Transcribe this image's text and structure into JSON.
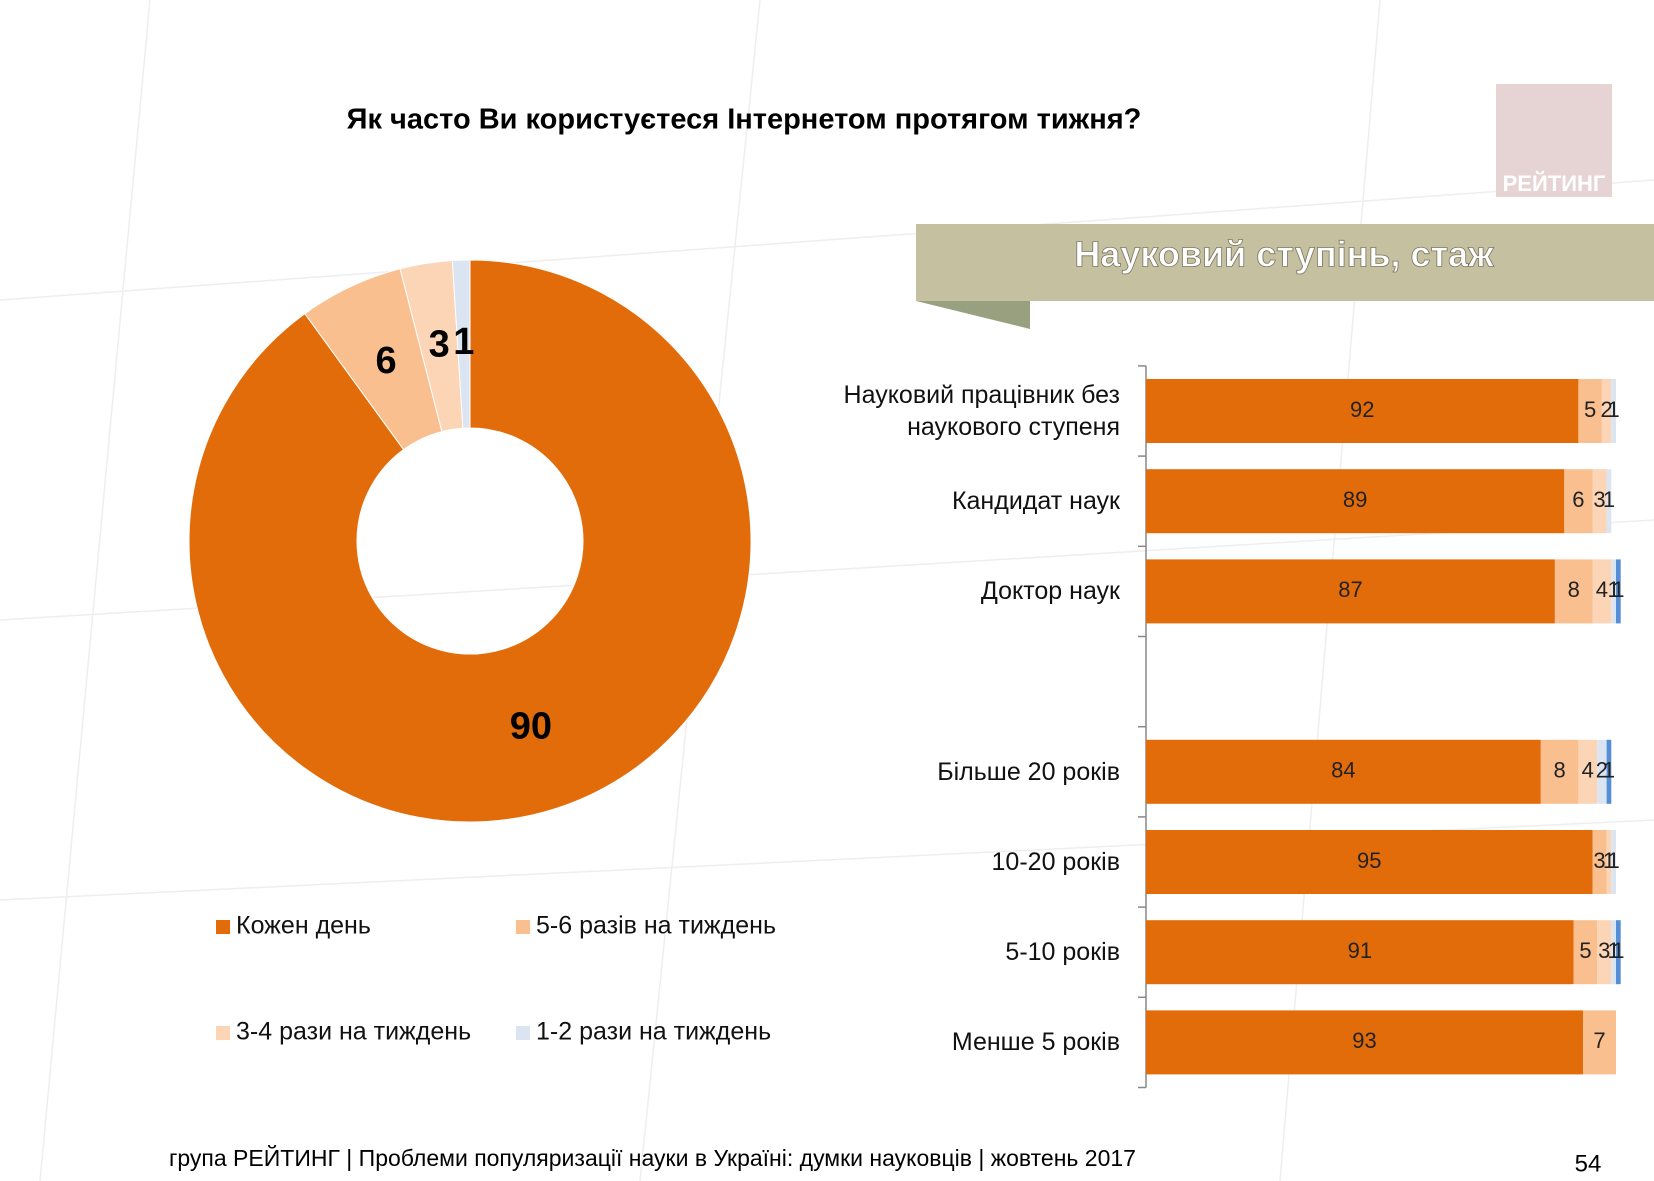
{
  "title": "Як часто Ви користуєтеся Інтернетом протягом тижня?",
  "logo": "РЕЙТИНГ",
  "footer": "група РЕЙТИНГ | Проблеми популяризації науки в Україні: думки науковців | жовтень 2017",
  "page_number": 54,
  "chart_data": [
    {
      "type": "pie",
      "donut": true,
      "categories": [
        "Кожен день",
        "5-6 разів на тиждень",
        "3-4 рази на тиждень",
        "1-2 рази на тиждень"
      ],
      "values": [
        90,
        6,
        3,
        1
      ],
      "colors": [
        "#e36c0a",
        "#f9bf8f",
        "#fbd5b5",
        "#dbe5f1"
      ]
    },
    {
      "type": "bar",
      "orientation": "horizontal",
      "stacked": true,
      "title": "Науковий ступінь, стаж",
      "categories": [
        "Науковий працівник без наукового ступеня",
        "Кандидат наук",
        "Доктор наук",
        null,
        "Більше 20 років",
        "10-20 років",
        "5-10 років",
        "Менше 5 років"
      ],
      "series": [
        {
          "color": "#e36c0a",
          "values": [
            92,
            89,
            87,
            null,
            84,
            95,
            91,
            93
          ]
        },
        {
          "color": "#f9bf8f",
          "values": [
            5,
            6,
            8,
            null,
            8,
            3,
            5,
            7
          ]
        },
        {
          "color": "#fbd5b5",
          "values": [
            2,
            3,
            4,
            null,
            4,
            1,
            3,
            null
          ]
        },
        {
          "color": "#dbe5f1",
          "values": [
            1,
            1,
            1,
            null,
            2,
            1,
            1,
            null
          ]
        },
        {
          "color": "#558ed5",
          "values": [
            null,
            null,
            1,
            null,
            1,
            null,
            1,
            null
          ]
        }
      ],
      "xlim": [
        0,
        100
      ]
    }
  ]
}
